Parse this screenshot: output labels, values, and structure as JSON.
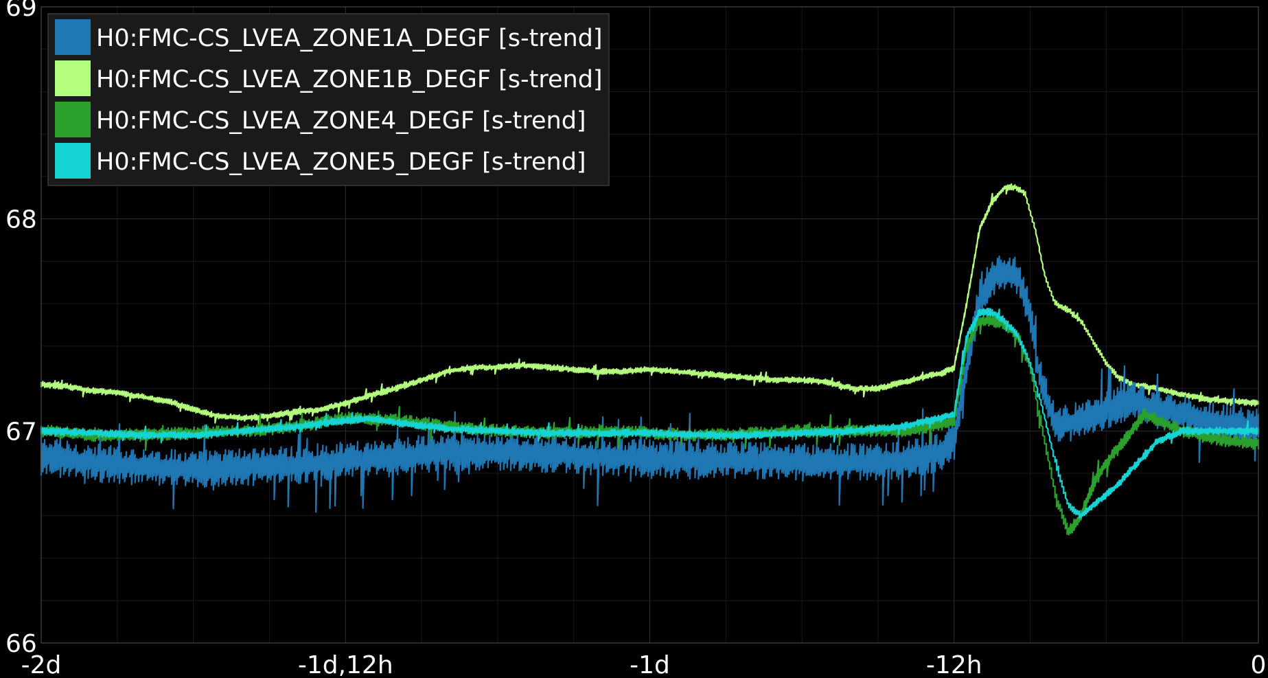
{
  "chart_data": {
    "type": "line",
    "title": "",
    "xlabel": "",
    "ylabel": "",
    "x_unit": "hours relative to now",
    "xlim": [
      -48,
      0
    ],
    "ylim": [
      66,
      69
    ],
    "grid": true,
    "legend_placement": "top-left",
    "y_ticks": [
      {
        "value": 69,
        "label": "69"
      },
      {
        "value": 68,
        "label": "68"
      },
      {
        "value": 67,
        "label": "67"
      },
      {
        "value": 66,
        "label": "66"
      }
    ],
    "x_ticks": [
      {
        "value": -48,
        "label": "-2d"
      },
      {
        "value": -36,
        "label": "-1d,12h"
      },
      {
        "value": -24,
        "label": "-1d"
      },
      {
        "value": -12,
        "label": "-12h"
      },
      {
        "value": 0,
        "label": "0"
      }
    ],
    "series": [
      {
        "name": "H0:FMC-CS_LVEA_ZONE1A_DEGF [s-trend]",
        "color": "#1f77b4",
        "noise": 0.075,
        "x": [
          -48,
          -46,
          -44,
          -42,
          -40,
          -38,
          -36,
          -34,
          -32,
          -30,
          -28,
          -26,
          -24,
          -22,
          -20,
          -18,
          -16,
          -14,
          -12.5,
          -12,
          -11.5,
          -11,
          -10.5,
          -10,
          -9.5,
          -9,
          -8.7,
          -8,
          -7,
          -6,
          -5,
          -4,
          -3,
          -2,
          -1,
          0
        ],
        "y": [
          66.88,
          66.85,
          66.83,
          66.82,
          66.83,
          66.84,
          66.86,
          66.88,
          66.9,
          66.9,
          66.89,
          66.88,
          66.87,
          66.86,
          66.86,
          66.85,
          66.85,
          66.86,
          66.9,
          66.95,
          67.3,
          67.62,
          67.72,
          67.75,
          67.73,
          67.55,
          67.3,
          67.02,
          67.05,
          67.1,
          67.15,
          67.1,
          67.08,
          67.05,
          67.03,
          67.02
        ]
      },
      {
        "name": "H0:FMC-CS_LVEA_ZONE1B_DEGF [s-trend]",
        "color": "#b5ff7f",
        "noise": 0.012,
        "x": [
          -48,
          -47,
          -46,
          -45,
          -44,
          -43,
          -42,
          -41,
          -40,
          -39,
          -38,
          -37,
          -36,
          -35,
          -34,
          -33,
          -32,
          -31,
          -30,
          -29,
          -28,
          -27,
          -26,
          -25,
          -24,
          -23,
          -22,
          -21,
          -20,
          -19,
          -18,
          -17,
          -16,
          -15,
          -14,
          -13,
          -12.5,
          -12,
          -11.5,
          -11,
          -10.5,
          -10,
          -9.6,
          -9.2,
          -8.8,
          -8.4,
          -8,
          -7.5,
          -7,
          -6.5,
          -6,
          -5.5,
          -5,
          -4.5,
          -4,
          -3,
          -2,
          -1,
          0
        ],
        "y": [
          67.22,
          67.21,
          67.19,
          67.18,
          67.16,
          67.14,
          67.1,
          67.07,
          67.06,
          67.07,
          67.09,
          67.1,
          67.13,
          67.17,
          67.2,
          67.24,
          67.28,
          67.3,
          67.3,
          67.31,
          67.3,
          67.29,
          67.28,
          67.28,
          67.29,
          67.28,
          67.27,
          67.26,
          67.25,
          67.24,
          67.24,
          67.23,
          67.2,
          67.2,
          67.23,
          67.26,
          67.27,
          67.3,
          67.6,
          67.95,
          68.08,
          68.15,
          68.15,
          68.12,
          67.95,
          67.72,
          67.6,
          67.57,
          67.52,
          67.42,
          67.32,
          67.25,
          67.22,
          67.21,
          67.2,
          67.17,
          67.15,
          67.14,
          67.13
        ]
      },
      {
        "name": "H0:FMC-CS_LVEA_ZONE4_DEGF [s-trend]",
        "color": "#2ca02c",
        "noise": 0.025,
        "x": [
          -48,
          -46,
          -44,
          -42,
          -40,
          -38,
          -36,
          -34,
          -32,
          -30,
          -28,
          -26,
          -24,
          -22,
          -20,
          -18,
          -16,
          -14,
          -13,
          -12.5,
          -12,
          -11.5,
          -11,
          -10.5,
          -10,
          -9.5,
          -9,
          -8.5,
          -8,
          -7.5,
          -7,
          -6.5,
          -6,
          -5.5,
          -5,
          -4.5,
          -4,
          -3,
          -2,
          -1,
          0
        ],
        "y": [
          67.0,
          66.98,
          66.98,
          66.99,
          67.0,
          67.02,
          67.06,
          67.05,
          67.02,
          67.0,
          66.99,
          67.0,
          66.99,
          66.98,
          66.99,
          67.0,
          67.0,
          67.0,
          67.02,
          67.03,
          67.05,
          67.4,
          67.52,
          67.52,
          67.5,
          67.45,
          67.3,
          67.0,
          66.7,
          66.52,
          66.6,
          66.75,
          66.85,
          66.92,
          67.0,
          67.08,
          67.05,
          67.0,
          66.97,
          66.95,
          66.94
        ]
      },
      {
        "name": "H0:FMC-CS_LVEA_ZONE5_DEGF [s-trend]",
        "color": "#17d4d4",
        "noise": 0.015,
        "x": [
          -48,
          -46,
          -44,
          -42,
          -40,
          -38,
          -36,
          -35,
          -34,
          -32,
          -30,
          -28,
          -26,
          -24,
          -22,
          -20,
          -18,
          -16,
          -14,
          -13,
          -12.5,
          -12,
          -11.5,
          -11,
          -10.5,
          -10,
          -9.5,
          -9,
          -8.5,
          -8,
          -7.5,
          -7,
          -6.5,
          -6,
          -5.5,
          -5,
          -4.5,
          -4,
          -3,
          -2,
          -1,
          0
        ],
        "y": [
          67.0,
          66.99,
          66.98,
          66.98,
          67.0,
          67.02,
          67.05,
          67.06,
          67.04,
          67.01,
          67.0,
          66.99,
          66.99,
          66.99,
          66.98,
          66.98,
          66.99,
          67.0,
          67.02,
          67.05,
          67.06,
          67.08,
          67.45,
          67.56,
          67.56,
          67.52,
          67.45,
          67.32,
          67.1,
          66.85,
          66.65,
          66.6,
          66.65,
          66.7,
          66.75,
          66.82,
          66.88,
          66.95,
          67.0,
          67.0,
          67.0,
          67.0
        ]
      }
    ]
  }
}
